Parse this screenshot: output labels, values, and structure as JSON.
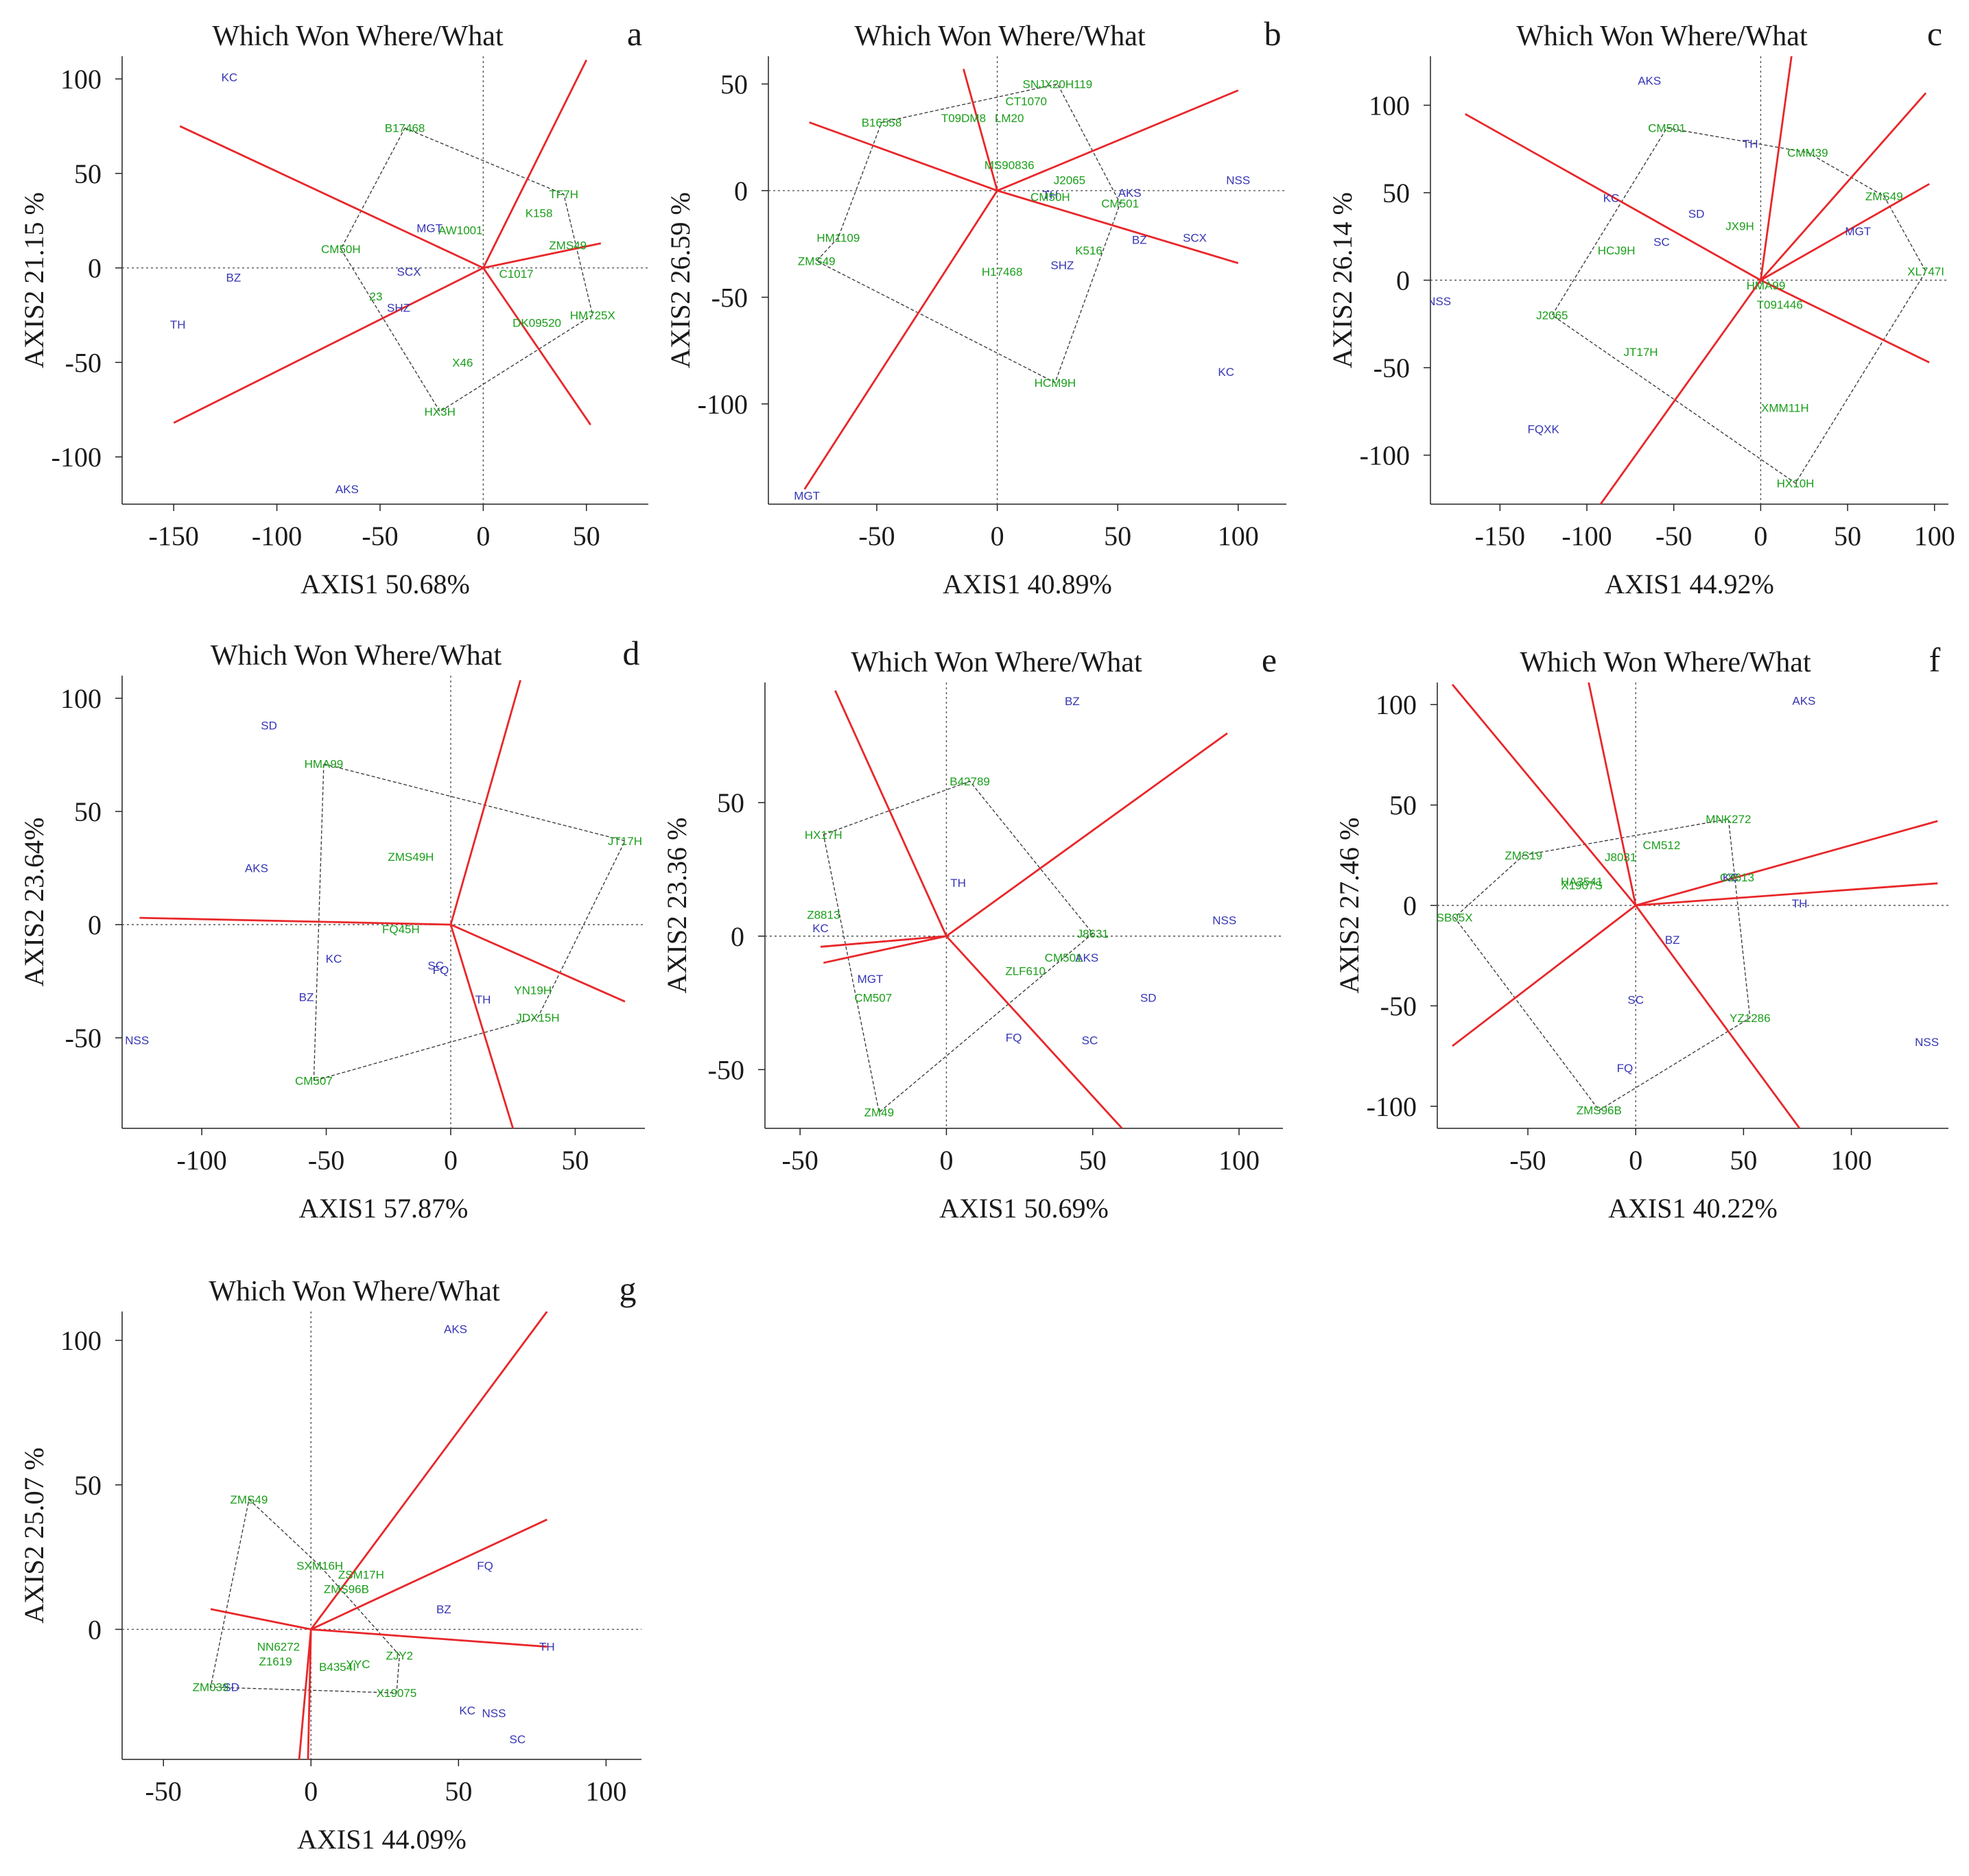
{
  "colors": {
    "genotype": "#1a9e1a",
    "environment": "#3535b5",
    "sector": "#e8272a",
    "hull": "#333333"
  },
  "chart_data": [
    {
      "id": "a",
      "type": "scatter",
      "title": "Which Won Where/What",
      "letter": "a",
      "xlabel": "AXIS1 50.68%",
      "ylabel": "AXIS2 21.15 %",
      "xlim": [
        -175,
        80
      ],
      "ylim": [
        -125,
        112
      ],
      "xticks": [
        -150,
        -100,
        -50,
        0,
        50
      ],
      "yticks": [
        -100,
        -50,
        0,
        50,
        100
      ],
      "environments": [
        {
          "name": "KC",
          "x": -123,
          "y": 101
        },
        {
          "name": "BZ",
          "x": -121,
          "y": -5
        },
        {
          "name": "TH",
          "x": -148,
          "y": -30
        },
        {
          "name": "AKS",
          "x": -66,
          "y": -117
        },
        {
          "name": "MGT",
          "x": -26,
          "y": 21
        },
        {
          "name": "SCX",
          "x": -36,
          "y": -2
        },
        {
          "name": "SHZ",
          "x": -41,
          "y": -21
        }
      ],
      "genotypes": [
        {
          "name": "B17468",
          "x": -38,
          "y": 74
        },
        {
          "name": "AW1001",
          "x": -11,
          "y": 20
        },
        {
          "name": "CM50H",
          "x": -69,
          "y": 10
        },
        {
          "name": "TF7H",
          "x": 39,
          "y": 39
        },
        {
          "name": "K158",
          "x": 27,
          "y": 29
        },
        {
          "name": "ZMS49",
          "x": 41,
          "y": 12
        },
        {
          "name": "C1017",
          "x": 16,
          "y": -3
        },
        {
          "name": "23",
          "x": -52,
          "y": -15
        },
        {
          "name": "DK09520",
          "x": 26,
          "y": -29
        },
        {
          "name": "HM725X",
          "x": 53,
          "y": -25
        },
        {
          "name": "X46",
          "x": -10,
          "y": -50
        },
        {
          "name": "HX3H",
          "x": -21,
          "y": -76
        }
      ],
      "hull": [
        "B17468",
        "TF7H",
        "HM725X",
        "HX3H",
        "CM50H"
      ],
      "rays": [
        [
          -147,
          75
        ],
        [
          -150,
          -82
        ],
        [
          50,
          110
        ],
        [
          52,
          -83
        ],
        [
          57,
          13
        ]
      ]
    },
    {
      "id": "b",
      "type": "scatter",
      "title": "Which Won Where/What",
      "letter": "b",
      "xlabel": "AXIS1 40.89%",
      "ylabel": "AXIS2 26.59 %",
      "xlim": [
        -95,
        120
      ],
      "ylim": [
        -147,
        63
      ],
      "xticks": [
        -50,
        0,
        50,
        100
      ],
      "yticks": [
        -100,
        -50,
        0,
        50
      ],
      "environments": [
        {
          "name": "NSS",
          "x": 100,
          "y": 5
        },
        {
          "name": "AKS",
          "x": 55,
          "y": -1
        },
        {
          "name": "TH",
          "x": 22,
          "y": -2
        },
        {
          "name": "SHZ",
          "x": 27,
          "y": -35
        },
        {
          "name": "BZ",
          "x": 59,
          "y": -23
        },
        {
          "name": "SCX",
          "x": 82,
          "y": -22
        },
        {
          "name": "KC",
          "x": 95,
          "y": -85
        },
        {
          "name": "MGT",
          "x": -79,
          "y": -143
        }
      ],
      "genotypes": [
        {
          "name": "SNJX20H119",
          "x": 25,
          "y": 50
        },
        {
          "name": "CT1070",
          "x": 12,
          "y": 42
        },
        {
          "name": "B16558",
          "x": -48,
          "y": 32
        },
        {
          "name": "T09DM8",
          "x": -14,
          "y": 34
        },
        {
          "name": "LM20",
          "x": 5,
          "y": 34
        },
        {
          "name": "MS90836",
          "x": 5,
          "y": 12
        },
        {
          "name": "J2065",
          "x": 30,
          "y": 5
        },
        {
          "name": "CM50H",
          "x": 22,
          "y": -3
        },
        {
          "name": "CM501",
          "x": 51,
          "y": -6
        },
        {
          "name": "K516",
          "x": 38,
          "y": -28
        },
        {
          "name": "H17468",
          "x": 2,
          "y": -38
        },
        {
          "name": "HM1109",
          "x": -66,
          "y": -22
        },
        {
          "name": "ZMS49",
          "x": -75,
          "y": -33
        },
        {
          "name": "HCM9H",
          "x": 24,
          "y": -90
        }
      ],
      "hull": [
        "B16558",
        "SNJX20H119",
        "CM501",
        "HCM9H",
        "ZMS49",
        "HM1109"
      ],
      "rays": [
        [
          -78,
          32
        ],
        [
          -14,
          57
        ],
        [
          100,
          47
        ],
        [
          100,
          -34
        ],
        [
          -80,
          -140
        ]
      ]
    },
    {
      "id": "c",
      "type": "scatter",
      "title": "Which Won Where/What",
      "letter": "c",
      "xlabel": "AXIS1 44.92%",
      "ylabel": "AXIS2 26.14 %",
      "xlim": [
        -190,
        108
      ],
      "ylim": [
        -128,
        128
      ],
      "xticks": [
        -150,
        -100,
        -50,
        0,
        50,
        100
      ],
      "yticks": [
        -100,
        -50,
        0,
        50,
        100
      ],
      "environments": [
        {
          "name": "AKS",
          "x": -64,
          "y": 114
        },
        {
          "name": "TH",
          "x": -6,
          "y": 78
        },
        {
          "name": "KC",
          "x": -86,
          "y": 47
        },
        {
          "name": "SD",
          "x": -37,
          "y": 38
        },
        {
          "name": "SC",
          "x": -57,
          "y": 22
        },
        {
          "name": "MGT",
          "x": 56,
          "y": 28
        },
        {
          "name": "NSS",
          "x": -185,
          "y": -12
        },
        {
          "name": "FQXK",
          "x": -125,
          "y": -85
        }
      ],
      "genotypes": [
        {
          "name": "CM501",
          "x": -54,
          "y": 87
        },
        {
          "name": "CMM39",
          "x": 27,
          "y": 73
        },
        {
          "name": "ZMS49",
          "x": 71,
          "y": 48
        },
        {
          "name": "XL747I",
          "x": 95,
          "y": 5
        },
        {
          "name": "JX9H",
          "x": -12,
          "y": 31
        },
        {
          "name": "HCJ9H",
          "x": -83,
          "y": 17
        },
        {
          "name": "HMA99",
          "x": 3,
          "y": -3
        },
        {
          "name": "T091446",
          "x": 11,
          "y": -14
        },
        {
          "name": "J2065",
          "x": -120,
          "y": -20
        },
        {
          "name": "JT17H",
          "x": -69,
          "y": -41
        },
        {
          "name": "XMM11H",
          "x": 14,
          "y": -73
        },
        {
          "name": "HX10H",
          "x": 20,
          "y": -116
        }
      ],
      "hull": [
        "CM501",
        "CMM39",
        "ZMS49",
        "XL747I",
        "HX10H",
        "J2065"
      ],
      "rays": [
        [
          -170,
          95
        ],
        [
          18,
          130
        ],
        [
          95,
          107
        ],
        [
          97,
          55
        ],
        [
          97,
          -47
        ],
        [
          -95,
          -132
        ]
      ]
    },
    {
      "id": "d",
      "type": "scatter",
      "title": "Which Won Where/What",
      "letter": "d",
      "xlabel": "AXIS1 57.87%",
      "ylabel": "AXIS2 23.64%",
      "xlim": [
        -132,
        78
      ],
      "ylim": [
        -90,
        110
      ],
      "xticks": [
        -100,
        -50,
        0,
        50
      ],
      "yticks": [
        -50,
        0,
        50,
        100
      ],
      "environments": [
        {
          "name": "SD",
          "x": -73,
          "y": 88
        },
        {
          "name": "AKS",
          "x": -78,
          "y": 25
        },
        {
          "name": "KC",
          "x": -47,
          "y": -15
        },
        {
          "name": "BZ",
          "x": -58,
          "y": -32
        },
        {
          "name": "SC",
          "x": -6,
          "y": -18
        },
        {
          "name": "FQ",
          "x": -4,
          "y": -20
        },
        {
          "name": "TH",
          "x": 13,
          "y": -33
        },
        {
          "name": "NSS",
          "x": -126,
          "y": -51
        }
      ],
      "genotypes": [
        {
          "name": "HMA99",
          "x": -51,
          "y": 71
        },
        {
          "name": "ZMS49H",
          "x": -16,
          "y": 30
        },
        {
          "name": "JT17H",
          "x": 70,
          "y": 37
        },
        {
          "name": "FQ45H",
          "x": -20,
          "y": -2
        },
        {
          "name": "YN19H",
          "x": 33,
          "y": -29
        },
        {
          "name": "JDX15H",
          "x": 35,
          "y": -41
        },
        {
          "name": "CM507",
          "x": -55,
          "y": -69
        }
      ],
      "hull": [
        "HMA99",
        "JT17H",
        "JDX15H",
        "CM507"
      ],
      "rays": [
        [
          -125,
          3
        ],
        [
          28,
          108
        ],
        [
          70,
          -34
        ],
        [
          25,
          -90
        ]
      ]
    },
    {
      "id": "e",
      "type": "scatter",
      "title": "Which Won Where/What",
      "letter": "e",
      "xlabel": "AXIS1 50.69%",
      "ylabel": "AXIS2 23.36 %",
      "xlim": [
        -62,
        115
      ],
      "ylim": [
        -72,
        95
      ],
      "xticks": [
        -50,
        0,
        50,
        100
      ],
      "yticks": [
        -50,
        0,
        50
      ],
      "environments": [
        {
          "name": "BZ",
          "x": 43,
          "y": 88
        },
        {
          "name": "TH",
          "x": 4,
          "y": 20
        },
        {
          "name": "NSS",
          "x": 95,
          "y": 6
        },
        {
          "name": "KC",
          "x": -43,
          "y": 3
        },
        {
          "name": "MGT",
          "x": -26,
          "y": -16
        },
        {
          "name": "AKS",
          "x": 48,
          "y": -8
        },
        {
          "name": "SD",
          "x": 69,
          "y": -23
        },
        {
          "name": "FQ",
          "x": 23,
          "y": -38
        },
        {
          "name": "SC",
          "x": 49,
          "y": -39
        }
      ],
      "genotypes": [
        {
          "name": "B42789",
          "x": 8,
          "y": 58
        },
        {
          "name": "HX17H",
          "x": -42,
          "y": 38
        },
        {
          "name": "Z8813",
          "x": -42,
          "y": 8
        },
        {
          "name": "J8631",
          "x": 50,
          "y": 1
        },
        {
          "name": "CM501",
          "x": 40,
          "y": -8
        },
        {
          "name": "ZLF610",
          "x": 27,
          "y": -13
        },
        {
          "name": "CM507",
          "x": -25,
          "y": -23
        },
        {
          "name": "ZM49",
          "x": -23,
          "y": -66
        }
      ],
      "hull": [
        "HX17H",
        "B42789",
        "J8631",
        "ZM49"
      ],
      "rays": [
        [
          -38,
          92
        ],
        [
          96,
          76
        ],
        [
          60,
          -72
        ],
        [
          -43,
          -4
        ],
        [
          -42,
          -10
        ]
      ]
    },
    {
      "id": "f",
      "type": "scatter",
      "title": "Which Won Where/What",
      "letter": "f",
      "xlabel": "AXIS1 40.22%",
      "ylabel": "AXIS2 27.46 %",
      "xlim": [
        -92,
        145
      ],
      "ylim": [
        -111,
        111
      ],
      "xticks": [
        -50,
        0,
        50,
        100
      ],
      "yticks": [
        -100,
        -50,
        0,
        50,
        100
      ],
      "environments": [
        {
          "name": "AKS",
          "x": 78,
          "y": 102
        },
        {
          "name": "KC",
          "x": 44,
          "y": 14
        },
        {
          "name": "TH",
          "x": 76,
          "y": 1
        },
        {
          "name": "BZ",
          "x": 17,
          "y": -17
        },
        {
          "name": "SC",
          "x": 0,
          "y": -47
        },
        {
          "name": "FQ",
          "x": -5,
          "y": -81
        },
        {
          "name": "NSS",
          "x": 135,
          "y": -68
        }
      ],
      "genotypes": [
        {
          "name": "MNK272",
          "x": 43,
          "y": 43
        },
        {
          "name": "CM512",
          "x": 12,
          "y": 30
        },
        {
          "name": "ZMS19",
          "x": -52,
          "y": 25
        },
        {
          "name": "J8031",
          "x": -7,
          "y": 24
        },
        {
          "name": "HA3541",
          "x": -25,
          "y": 12
        },
        {
          "name": "X1907S",
          "x": -25,
          "y": 10
        },
        {
          "name": "C8613",
          "x": 47,
          "y": 14
        },
        {
          "name": "SB05X",
          "x": -84,
          "y": -6
        },
        {
          "name": "YZ1286",
          "x": 53,
          "y": -56
        },
        {
          "name": "ZMS96B",
          "x": -17,
          "y": -102
        }
      ],
      "hull": [
        "ZMS19",
        "MNK272",
        "YZ1286",
        "ZMS96B",
        "SB05X"
      ],
      "rays": [
        [
          -85,
          110
        ],
        [
          -22,
          112
        ],
        [
          140,
          42
        ],
        [
          140,
          11
        ],
        [
          76,
          -111
        ],
        [
          -85,
          -70
        ]
      ]
    },
    {
      "id": "g",
      "type": "scatter",
      "title": "Which Won Where/What",
      "letter": "g",
      "xlabel": "AXIS1 44.09%",
      "ylabel": "AXIS2 25.07 %",
      "xlim": [
        -64,
        112
      ],
      "ylim": [
        -45,
        110
      ],
      "xticks": [
        -50,
        0,
        50,
        100
      ],
      "yticks": [
        0,
        50,
        100
      ],
      "environments": [
        {
          "name": "AKS",
          "x": 49,
          "y": 104
        },
        {
          "name": "FQ",
          "x": 59,
          "y": 22
        },
        {
          "name": "BZ",
          "x": 45,
          "y": 7
        },
        {
          "name": "TH",
          "x": 80,
          "y": -6
        },
        {
          "name": "KC",
          "x": 53,
          "y": -28
        },
        {
          "name": "NSS",
          "x": 62,
          "y": -29
        },
        {
          "name": "SC",
          "x": 70,
          "y": -38
        },
        {
          "name": "SD",
          "x": -27,
          "y": -20
        }
      ],
      "genotypes": [
        {
          "name": "ZMS49",
          "x": -21,
          "y": 45
        },
        {
          "name": "SXM16H",
          "x": 3,
          "y": 22
        },
        {
          "name": "ZSM17H",
          "x": 17,
          "y": 19
        },
        {
          "name": "ZMS96B",
          "x": 12,
          "y": 14
        },
        {
          "name": "NN6272",
          "x": -11,
          "y": -6
        },
        {
          "name": "Z1619",
          "x": -12,
          "y": -11
        },
        {
          "name": "B4354I",
          "x": 9,
          "y": -13
        },
        {
          "name": "YYC",
          "x": 16,
          "y": -12
        },
        {
          "name": "ZJY2",
          "x": 30,
          "y": -9
        },
        {
          "name": "X19075",
          "x": 29,
          "y": -22
        },
        {
          "name": "ZM039",
          "x": -34,
          "y": -20
        }
      ],
      "hull": [
        "ZMS49",
        "SXM16H",
        "ZJY2",
        "X19075",
        "ZM039"
      ],
      "rays": [
        [
          80,
          110
        ],
        [
          80,
          38
        ],
        [
          80,
          -6
        ],
        [
          -34,
          7
        ],
        [
          -4,
          -45
        ],
        [
          -1,
          -45
        ]
      ]
    }
  ]
}
